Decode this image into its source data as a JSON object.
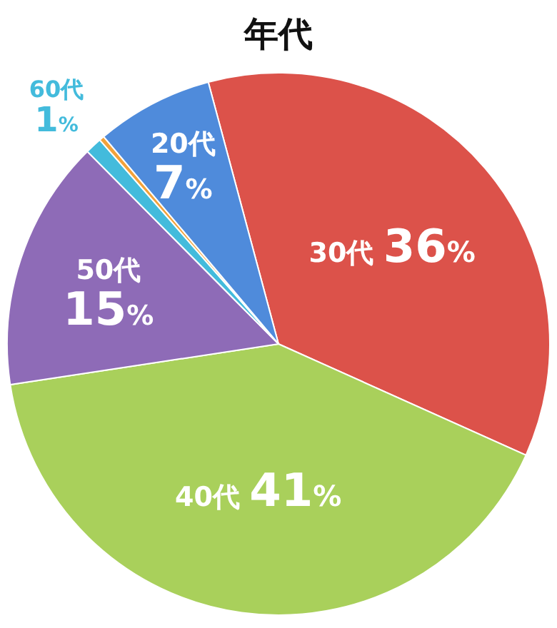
{
  "chart_data": {
    "type": "pie",
    "title": "年代",
    "categories": [
      "30代",
      "40代",
      "50代",
      "60代",
      null,
      "20代"
    ],
    "values": [
      36,
      41,
      15,
      1,
      0.3,
      7
    ],
    "colors": [
      "#dc524a",
      "#a9d05b",
      "#8e6bb7",
      "#43bbdc",
      "#f2a23a",
      "#4f8bdb"
    ],
    "value_labels": [
      "36%",
      "41%",
      "15%",
      "1%",
      null,
      "7%"
    ]
  }
}
